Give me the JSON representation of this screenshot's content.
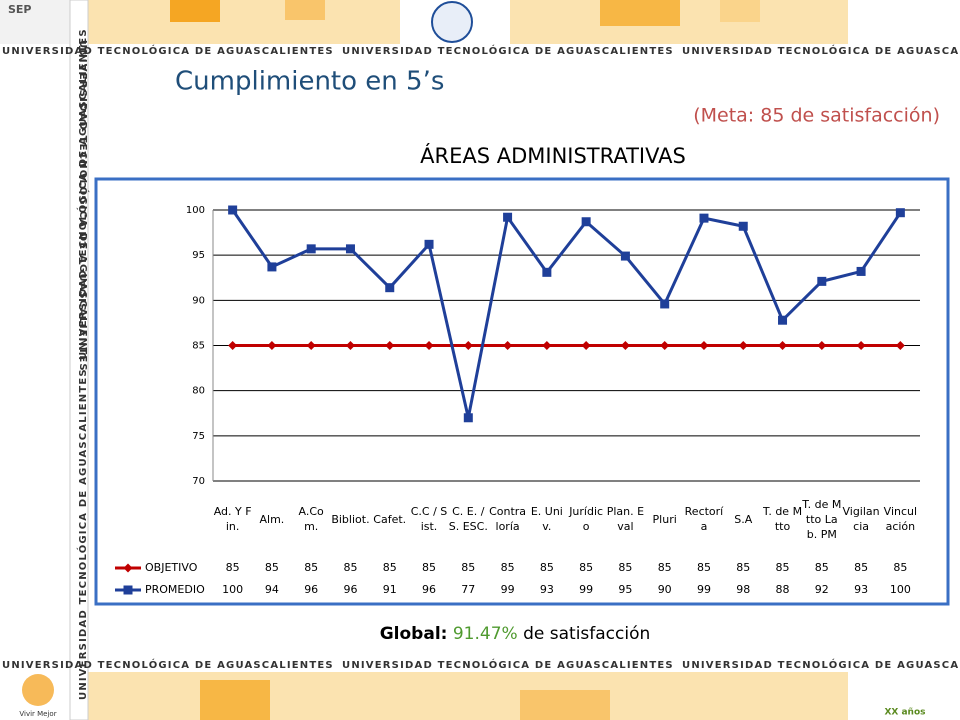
{
  "slide": {
    "title": "Cumplimiento en 5’s",
    "subtitle": "(Meta: 85 de satisfacción)",
    "banner": "UNIVERSIDAD TECNOLÓGICA DE AGUASCALIENTES",
    "logo_top": "SEP",
    "logo_bottom_left": "Vivir Mejor",
    "logo_bottom_right": "XX años",
    "footer": {
      "label": "Global:",
      "value": "91.47%",
      "text": "de satisfacción"
    }
  },
  "chart_data": {
    "type": "line",
    "title": "ÁREAS ADMINISTRATIVAS",
    "categories": [
      "Ad. Y Fin.",
      "Alm.",
      "A.Com.",
      "Bibliot.",
      "Cafet.",
      "C.C / Sist.",
      "C. E. / S. ESC.",
      "Contraloría",
      "E. Univ.",
      "Jurídico",
      "Plan. Eval",
      "Pluri",
      "Rectoría",
      "S.A",
      "T. de Mtto",
      "T. de Mtto Lab. PM",
      "Vigilancia",
      "Vinculación"
    ],
    "series": [
      {
        "name": "OBJETIVO",
        "color": "#c00000",
        "marker": "diamond",
        "values": [
          85,
          85,
          85,
          85,
          85,
          85,
          85,
          85,
          85,
          85,
          85,
          85,
          85,
          85,
          85,
          85,
          85,
          85
        ]
      },
      {
        "name": "PROMEDIO",
        "color": "#1f3f99",
        "marker": "square",
        "values": [
          100,
          93.7,
          95.7,
          95.7,
          91.4,
          96.2,
          77,
          99.2,
          93.1,
          98.7,
          94.9,
          89.6,
          99.1,
          98.2,
          87.8,
          92.1,
          93.2,
          99.7
        ],
        "value_labels": [
          "100",
          "94",
          "96",
          "96",
          "91",
          "96",
          "77",
          "99",
          "93",
          "99",
          "95",
          "90",
          "99",
          "98",
          "88",
          "92",
          "93",
          "100"
        ]
      }
    ],
    "ylim": [
      70,
      100
    ],
    "yticks": [
      70,
      75,
      80,
      85,
      90,
      95,
      100
    ],
    "grid": true,
    "data_table": true
  }
}
